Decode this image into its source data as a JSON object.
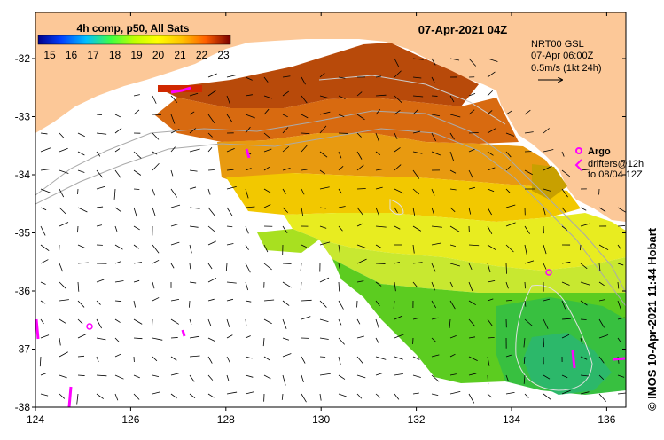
{
  "title": {
    "date_label": "07-Apr-2021 04Z"
  },
  "colorbar": {
    "title": "4h comp, p50, All Sats",
    "ticks": [
      "15",
      "16",
      "17",
      "18",
      "19",
      "20",
      "21",
      "22",
      "23"
    ],
    "colors": [
      "#00008b",
      "#0040ff",
      "#00c0ff",
      "#40ff40",
      "#c0ff00",
      "#ffff00",
      "#ffc000",
      "#ff6000",
      "#c00000",
      "#7a0000"
    ]
  },
  "info": {
    "model": "NRT00 GSL",
    "time": "07-Apr 06:00Z",
    "scale": "0.5m/s (1kt 24h)"
  },
  "legend": {
    "argo": "Argo",
    "drifters_line1": "drifters@12h",
    "drifters_line2": "to 08/04 12Z"
  },
  "axes": {
    "x_ticks": [
      "124",
      "126",
      "128",
      "130",
      "132",
      "134",
      "136"
    ],
    "y_ticks": [
      "-32",
      "-33",
      "-34",
      "-35",
      "-36",
      "-37",
      "-38"
    ]
  },
  "credit": "© IMOS 10-Apr-2021 11:44 Hobart",
  "colors": {
    "land": "#fcc898",
    "ocean_nodata": "#ffffff",
    "argo": "#ff00ff",
    "contour": "#aaaaaa"
  }
}
